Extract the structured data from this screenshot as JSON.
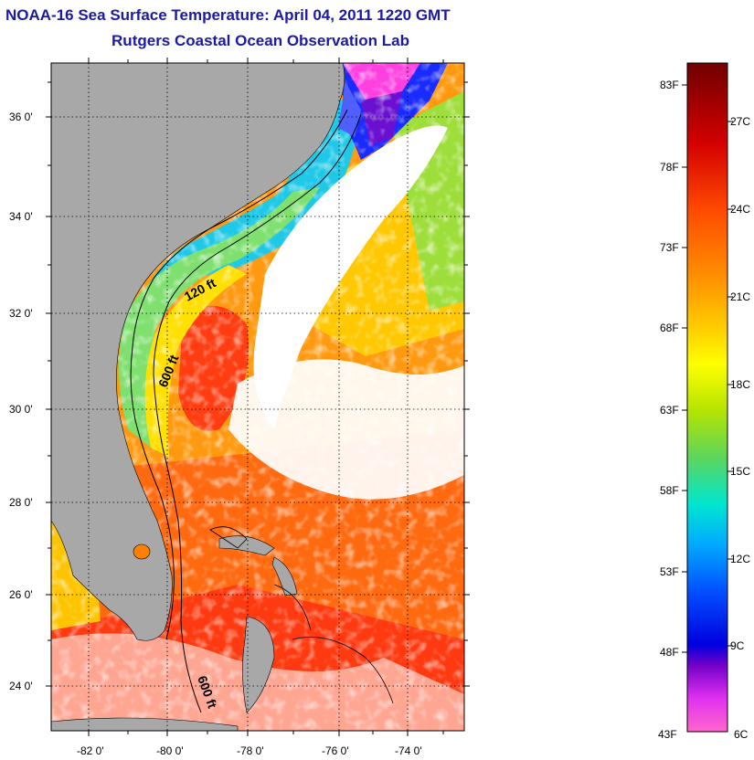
{
  "title_line1": "NOAA-16 Sea Surface Temperature:  April 04, 2011 1220 GMT",
  "title_line2": "Rutgers Coastal Ocean Observation Lab",
  "map": {
    "lat_labels": [
      "36 0'",
      "34 0'",
      "32 0'",
      "30 0'",
      "28 0'",
      "26 0'",
      "24 0'"
    ],
    "lon_labels": [
      "-82 0'",
      "-80 0'",
      "-78 0'",
      "-76 0'",
      "-74 0'"
    ],
    "contour_labels": [
      "120 ft",
      "600 ft",
      "600 ft"
    ],
    "colors": {
      "land": "#a8a8a8",
      "cloud": "#ffffff"
    }
  },
  "colorbar": {
    "f_labels": [
      "83F",
      "78F",
      "73F",
      "68F",
      "63F",
      "58F",
      "53F",
      "48F",
      "43F"
    ],
    "c_labels": [
      "27C",
      "24C",
      "21C",
      "18C",
      "15C",
      "12C",
      "9C",
      "6C"
    ],
    "colors_top_to_bottom": [
      "#7a0000",
      "#d60000",
      "#ff5500",
      "#ff9a00",
      "#ffd200",
      "#ffff00",
      "#aee000",
      "#55d655",
      "#00e0d0",
      "#00a8ff",
      "#0050ff",
      "#0000e0",
      "#7a00c0",
      "#ff40ff",
      "#ff66cc"
    ]
  }
}
